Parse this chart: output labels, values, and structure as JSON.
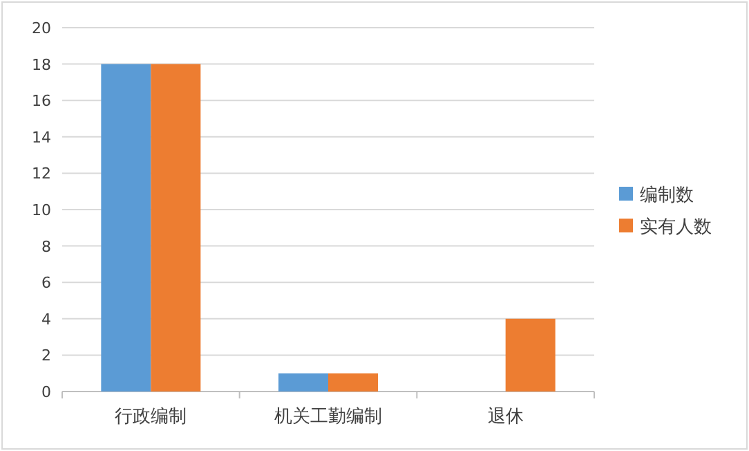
{
  "chart_data": {
    "type": "bar",
    "categories": [
      "行政编制",
      "机关工勤编制",
      "退休"
    ],
    "series": [
      {
        "name": "编制数",
        "color": "#5b9bd5",
        "values": [
          18,
          1,
          0
        ]
      },
      {
        "name": "实有人数",
        "color": "#ed7d31",
        "values": [
          18,
          1,
          4
        ]
      }
    ],
    "ylim": [
      0,
      20
    ],
    "yticks": [
      0,
      2,
      4,
      6,
      8,
      10,
      12,
      14,
      16,
      18,
      20
    ],
    "grid": "y",
    "legend": "right"
  }
}
